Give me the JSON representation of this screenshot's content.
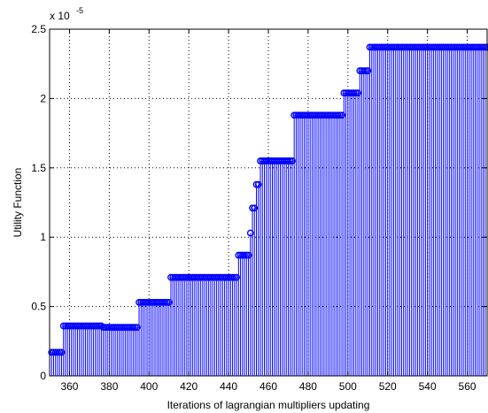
{
  "chart_data": {
    "type": "stem",
    "title": "",
    "xlabel": "Iterations of lagrangian multipliers updating",
    "ylabel": "Utility Function",
    "scale_label": "x 10",
    "scale_exponent": "-5",
    "scale_factor": 1e-05,
    "xlim": [
      350,
      570
    ],
    "ylim": [
      0,
      2.5e-05
    ],
    "xticks": [
      360,
      380,
      400,
      420,
      440,
      460,
      480,
      500,
      520,
      540,
      560
    ],
    "xtick_labels": [
      "360",
      "380",
      "400",
      "420",
      "440",
      "460",
      "480",
      "500",
      "520",
      "540",
      "560"
    ],
    "yticks": [
      0,
      0.5,
      1,
      1.5,
      2,
      2.5
    ],
    "ytick_labels": [
      "0",
      "0.5",
      "1",
      "1.5",
      "2",
      "2.5"
    ],
    "grid": true,
    "color": "#0000ff",
    "marker": "circle",
    "series": [
      {
        "steps": [
          {
            "x_start": 351,
            "x_end": 356,
            "y": 1.7e-06
          },
          {
            "x_start": 357,
            "x_end": 376,
            "y": 3.6e-06
          },
          {
            "x_start": 377,
            "x_end": 387,
            "y": 3.5e-06
          },
          {
            "x_start": 388,
            "x_end": 394,
            "y": 3.5e-06
          },
          {
            "x_start": 395,
            "x_end": 410,
            "y": 5.3e-06
          },
          {
            "x_start": 411,
            "x_end": 444,
            "y": 7.1e-06
          },
          {
            "x_start": 445,
            "x_end": 450,
            "y": 8.7e-06
          },
          {
            "x_start": 451,
            "x_end": 451,
            "y": 1.03e-05
          },
          {
            "x_start": 452,
            "x_end": 453,
            "y": 1.21e-05
          },
          {
            "x_start": 454,
            "x_end": 455,
            "y": 1.38e-05
          },
          {
            "x_start": 456,
            "x_end": 472,
            "y": 1.55e-05
          },
          {
            "x_start": 473,
            "x_end": 497,
            "y": 1.88e-05
          },
          {
            "x_start": 498,
            "x_end": 505,
            "y": 2.04e-05
          },
          {
            "x_start": 506,
            "x_end": 510,
            "y": 2.2e-05
          },
          {
            "x_start": 511,
            "x_end": 570,
            "y": 2.37e-05
          }
        ]
      }
    ]
  }
}
